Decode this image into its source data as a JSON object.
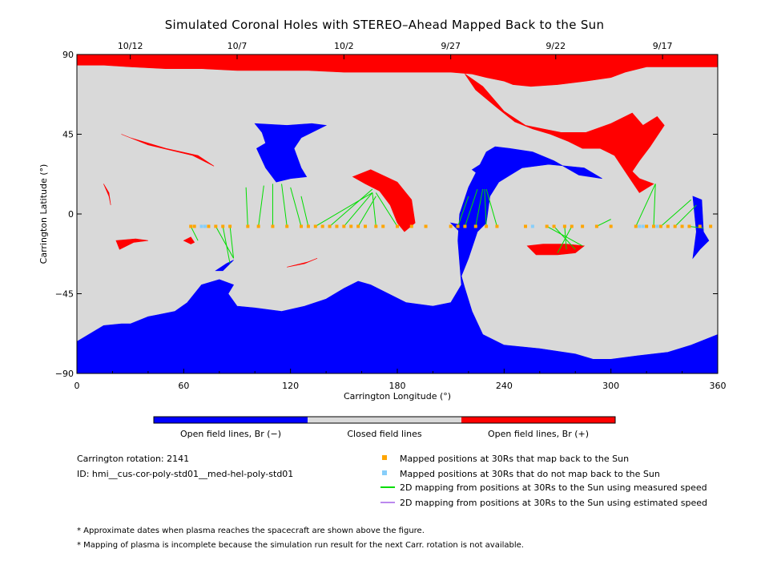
{
  "chart_data": {
    "type": "map",
    "title": "Simulated Coronal Holes with STEREO–Ahead Mapped Back to the Sun",
    "xlabel": "Carrington Longitude (°)",
    "ylabel": "Carrington Latitude (°)",
    "xlim": [
      0,
      360
    ],
    "ylim": [
      -90,
      90
    ],
    "x_ticks": [
      "0",
      "60",
      "120",
      "180",
      "240",
      "300",
      "360"
    ],
    "y_ticks": [
      "90",
      "45",
      "0",
      "−45",
      "−90"
    ],
    "top_date_axis": {
      "labels": [
        "10/12",
        "10/7",
        "10/2",
        "9/27",
        "9/22",
        "9/17"
      ],
      "longitudes": [
        30,
        90,
        150,
        210,
        269,
        329
      ]
    },
    "colors": {
      "negative": "#0000ff",
      "closed": "#d9d9d9",
      "positive": "#ff0000",
      "mapped": "#ffa500",
      "unmapped": "#87cefa",
      "measured": "#00dd00",
      "estimated": "#bb88ee"
    },
    "regions": {
      "positive": [
        [
          [
            0,
            90
          ],
          [
            360,
            90
          ],
          [
            360,
            83
          ],
          [
            340,
            83
          ],
          [
            320,
            83
          ],
          [
            308,
            80
          ],
          [
            300,
            77
          ],
          [
            286,
            75
          ],
          [
            270,
            73
          ],
          [
            255,
            72
          ],
          [
            245,
            73
          ],
          [
            240,
            75
          ],
          [
            230,
            77
          ],
          [
            222,
            79
          ],
          [
            210,
            80
          ],
          [
            195,
            80
          ],
          [
            175,
            80
          ],
          [
            150,
            80
          ],
          [
            130,
            81
          ],
          [
            110,
            81
          ],
          [
            90,
            81
          ],
          [
            70,
            82
          ],
          [
            50,
            82
          ],
          [
            30,
            83
          ],
          [
            15,
            84
          ],
          [
            0,
            84
          ]
        ],
        [
          [
            218,
            79
          ],
          [
            228,
            72
          ],
          [
            240,
            58
          ],
          [
            252,
            50
          ],
          [
            262,
            48
          ],
          [
            272,
            46
          ],
          [
            286,
            46
          ],
          [
            300,
            51
          ],
          [
            312,
            57
          ],
          [
            318,
            50
          ],
          [
            326,
            55
          ],
          [
            330,
            50
          ],
          [
            326,
            44
          ],
          [
            322,
            38
          ],
          [
            316,
            30
          ],
          [
            312,
            24
          ],
          [
            316,
            20
          ],
          [
            324,
            17
          ],
          [
            316,
            12
          ],
          [
            308,
            24
          ],
          [
            302,
            33
          ],
          [
            294,
            37
          ],
          [
            284,
            37
          ],
          [
            276,
            41
          ],
          [
            266,
            45
          ],
          [
            256,
            48
          ],
          [
            246,
            52
          ],
          [
            236,
            60
          ],
          [
            224,
            70
          ]
        ],
        [
          [
            25,
            45
          ],
          [
            40,
            39
          ],
          [
            65,
            33
          ],
          [
            77,
            27
          ],
          [
            68,
            33
          ],
          [
            50,
            37
          ],
          [
            30,
            43
          ]
        ],
        [
          [
            165,
            25
          ],
          [
            180,
            18
          ],
          [
            188,
            8
          ],
          [
            190,
            -5
          ],
          [
            184,
            -10
          ],
          [
            180,
            -5
          ],
          [
            176,
            5
          ],
          [
            170,
            13
          ],
          [
            162,
            17
          ],
          [
            155,
            21
          ]
        ],
        [
          [
            22,
            -15
          ],
          [
            33,
            -14
          ],
          [
            40,
            -15
          ],
          [
            32,
            -16
          ],
          [
            24,
            -20
          ]
        ],
        [
          [
            60,
            -15
          ],
          [
            64,
            -17
          ],
          [
            66,
            -16
          ],
          [
            64,
            -13
          ]
        ],
        [
          [
            118,
            -30
          ],
          [
            128,
            -28
          ],
          [
            135,
            -25
          ],
          [
            130,
            -27
          ]
        ],
        [
          [
            253,
            -18
          ],
          [
            262,
            -17
          ],
          [
            275,
            -17
          ],
          [
            285,
            -18
          ],
          [
            280,
            -22
          ],
          [
            270,
            -23
          ],
          [
            258,
            -23
          ]
        ],
        [
          [
            15,
            17
          ],
          [
            18,
            12
          ],
          [
            19,
            5
          ],
          [
            18,
            10
          ]
        ]
      ],
      "negative": [
        [
          [
            0,
            -90
          ],
          [
            360,
            -90
          ],
          [
            360,
            -68
          ],
          [
            345,
            -74
          ],
          [
            332,
            -78
          ],
          [
            315,
            -80
          ],
          [
            300,
            -82
          ],
          [
            290,
            -82
          ],
          [
            280,
            -79
          ],
          [
            260,
            -76
          ],
          [
            240,
            -74
          ],
          [
            228,
            -68
          ],
          [
            222,
            -55
          ],
          [
            218,
            -42
          ],
          [
            216,
            -35
          ],
          [
            220,
            -25
          ],
          [
            225,
            -10
          ],
          [
            230,
            -5
          ],
          [
            232,
            10
          ],
          [
            237,
            18
          ],
          [
            250,
            26
          ],
          [
            265,
            28
          ],
          [
            285,
            26
          ],
          [
            295,
            20
          ],
          [
            282,
            22
          ],
          [
            268,
            30
          ],
          [
            256,
            35
          ],
          [
            243,
            37
          ],
          [
            235,
            38
          ],
          [
            230,
            35
          ],
          [
            225,
            25
          ],
          [
            220,
            15
          ],
          [
            215,
            0
          ],
          [
            214,
            -15
          ],
          [
            216,
            -40
          ],
          [
            210,
            -50
          ],
          [
            200,
            -52
          ],
          [
            185,
            -50
          ],
          [
            175,
            -45
          ],
          [
            165,
            -40
          ],
          [
            158,
            -38
          ],
          [
            150,
            -42
          ],
          [
            140,
            -48
          ],
          [
            128,
            -52
          ],
          [
            115,
            -55
          ],
          [
            100,
            -53
          ],
          [
            90,
            -52
          ],
          [
            85,
            -45
          ],
          [
            88,
            -40
          ],
          [
            80,
            -37
          ],
          [
            70,
            -40
          ],
          [
            62,
            -50
          ],
          [
            55,
            -55
          ],
          [
            45,
            -57
          ],
          [
            40,
            -58
          ],
          [
            30,
            -62
          ],
          [
            25,
            -62
          ],
          [
            15,
            -63
          ],
          [
            0,
            -72
          ]
        ],
        [
          [
            100,
            51
          ],
          [
            118,
            50
          ],
          [
            132,
            51
          ],
          [
            140,
            50
          ],
          [
            126,
            43
          ],
          [
            122,
            37
          ],
          [
            126,
            26
          ],
          [
            129,
            21
          ],
          [
            120,
            20
          ],
          [
            112,
            18
          ],
          [
            106,
            26
          ],
          [
            101,
            37
          ],
          [
            106,
            40
          ],
          [
            104,
            46
          ]
        ],
        [
          [
            346,
            10
          ],
          [
            351,
            8
          ],
          [
            352,
            -10
          ],
          [
            355,
            -15
          ],
          [
            350,
            -20
          ],
          [
            346,
            -25
          ],
          [
            348,
            -10
          ]
        ],
        [
          [
            78,
            -32
          ],
          [
            84,
            -28
          ],
          [
            88,
            -26
          ],
          [
            82,
            -32
          ]
        ],
        [
          [
            222,
            25
          ],
          [
            233,
            32
          ],
          [
            244,
            36
          ],
          [
            248,
            34
          ],
          [
            236,
            30
          ],
          [
            226,
            22
          ]
        ],
        [
          [
            210,
            -5
          ],
          [
            215,
            -10
          ],
          [
            222,
            -12
          ],
          [
            215,
            -6
          ]
        ]
      ]
    },
    "mapped_points": {
      "lat": -7,
      "mapped_lon": [
        64,
        66,
        74,
        78,
        82,
        86,
        96,
        102,
        110,
        118,
        126,
        130,
        134,
        138,
        142,
        146,
        150,
        154,
        158,
        162,
        168,
        172,
        180,
        188,
        196,
        210,
        214,
        218,
        224,
        230,
        236,
        252,
        264,
        268,
        274,
        278,
        284,
        292,
        300,
        314,
        320,
        324,
        328,
        332,
        336,
        340,
        344,
        350,
        356
      ],
      "unmapped_lon": [
        70,
        72,
        256,
        316,
        318,
        326
      ]
    },
    "measured_lines": [
      [
        [
          64,
          -7
        ],
        [
          68,
          -15
        ]
      ],
      [
        [
          78,
          -7
        ],
        [
          88,
          -25
        ]
      ],
      [
        [
          82,
          -7
        ],
        [
          86,
          -28
        ]
      ],
      [
        [
          86,
          -7
        ],
        [
          88,
          -25
        ]
      ],
      [
        [
          96,
          -7
        ],
        [
          95,
          15
        ]
      ],
      [
        [
          102,
          -7
        ],
        [
          105,
          16
        ]
      ],
      [
        [
          110,
          -7
        ],
        [
          110,
          17
        ]
      ],
      [
        [
          118,
          -7
        ],
        [
          115,
          17
        ]
      ],
      [
        [
          126,
          -7
        ],
        [
          120,
          15
        ]
      ],
      [
        [
          130,
          -7
        ],
        [
          126,
          10
        ]
      ],
      [
        [
          134,
          -7
        ],
        [
          166,
          12
        ]
      ],
      [
        [
          142,
          -7
        ],
        [
          166,
          14
        ]
      ],
      [
        [
          150,
          -7
        ],
        [
          166,
          12
        ]
      ],
      [
        [
          158,
          -7
        ],
        [
          168,
          10
        ]
      ],
      [
        [
          168,
          -7
        ],
        [
          166,
          12
        ]
      ],
      [
        [
          180,
          -7
        ],
        [
          168,
          12
        ]
      ],
      [
        [
          214,
          -7
        ],
        [
          220,
          10
        ]
      ],
      [
        [
          218,
          -7
        ],
        [
          225,
          14
        ]
      ],
      [
        [
          224,
          -7
        ],
        [
          228,
          14
        ]
      ],
      [
        [
          230,
          -7
        ],
        [
          229,
          14
        ]
      ],
      [
        [
          236,
          -7
        ],
        [
          230,
          14
        ]
      ],
      [
        [
          264,
          -7
        ],
        [
          284,
          -18
        ]
      ],
      [
        [
          268,
          -7
        ],
        [
          280,
          -20
        ]
      ],
      [
        [
          274,
          -7
        ],
        [
          275,
          -20
        ]
      ],
      [
        [
          278,
          -7
        ],
        [
          270,
          -22
        ]
      ],
      [
        [
          292,
          -7
        ],
        [
          300,
          -3
        ]
      ],
      [
        [
          314,
          -7
        ],
        [
          325,
          17
        ]
      ],
      [
        [
          324,
          -7
        ],
        [
          325,
          17
        ]
      ],
      [
        [
          328,
          -7
        ],
        [
          345,
          8
        ]
      ],
      [
        [
          336,
          -7
        ],
        [
          348,
          5
        ]
      ],
      [
        [
          344,
          -7
        ],
        [
          352,
          -8
        ]
      ]
    ]
  },
  "colorbar": {
    "labels": [
      "Open field lines, Br (−)",
      "Closed field lines",
      "Open field lines, Br (+)"
    ],
    "colors": [
      "#0000ff",
      "#d9d9d9",
      "#ff0000"
    ]
  },
  "info": {
    "rotation": "Carrington rotation: 2141",
    "id": "ID: hmi__cus-cor-poly-std01__med-hel-poly-std01"
  },
  "legend": {
    "mapped": "Mapped positions at 30Rs that map back to the Sun",
    "unmapped": "Mapped positions at 30Rs that do not map back to the Sun",
    "measured": "2D mapping from positions at 30Rs to the Sun using measured speed",
    "estimated": "2D mapping from positions at 30Rs to the Sun using estimated speed"
  },
  "notes": [
    "* Approximate dates when plasma reaches the spacecraft are shown above the figure.",
    "* Mapping of plasma is incomplete because the simulation run result for the next Carr. rotation is not available."
  ]
}
